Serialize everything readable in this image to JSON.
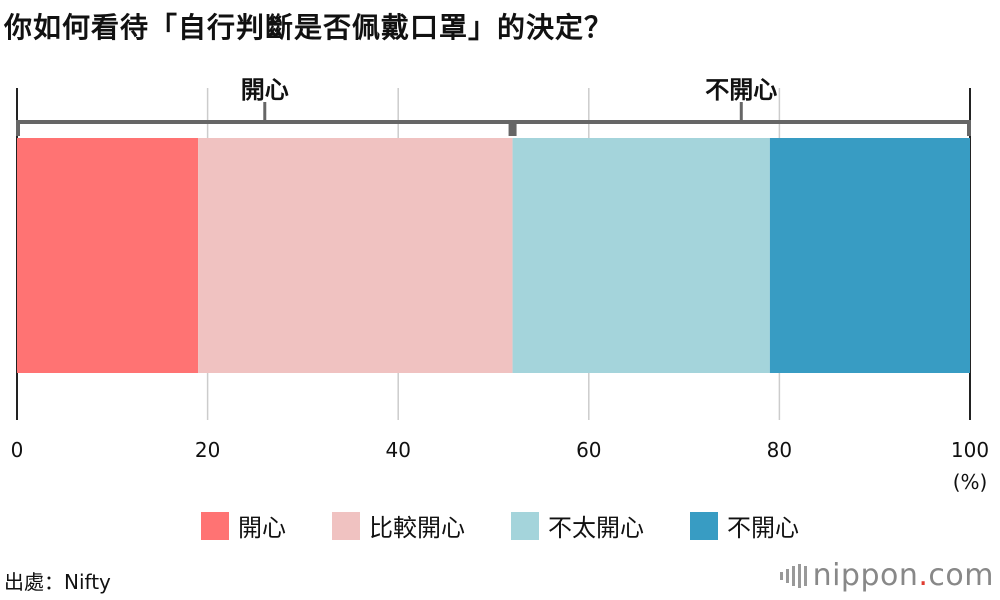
{
  "title": "你如何看待「自行判斷是否佩戴口罩」的決定？",
  "source": "出處：Nifty",
  "logo": {
    "name": "nippon",
    "dot": ".",
    "suffix": "com",
    "dot_color": "#e03c31"
  },
  "chart_data": {
    "type": "bar",
    "orientation": "horizontal-stacked",
    "series": [
      {
        "name": "開心",
        "value": 19,
        "color": "#ff7373"
      },
      {
        "name": "比較開心",
        "value": 33,
        "color": "#f0c2c1"
      },
      {
        "name": "不太開心",
        "value": 27,
        "color": "#a4d4db"
      },
      {
        "name": "不開心",
        "value": 21,
        "color": "#389cc3"
      }
    ],
    "xlim": [
      0,
      100
    ],
    "xticks": [
      "0",
      "20",
      "40",
      "60",
      "80",
      "100"
    ],
    "xunit": "(%)",
    "grid": true,
    "legend": "bottom",
    "groups": [
      {
        "label": "開心",
        "start": 0,
        "end": 52
      },
      {
        "label": "不開心",
        "start": 52,
        "end": 100
      }
    ]
  }
}
